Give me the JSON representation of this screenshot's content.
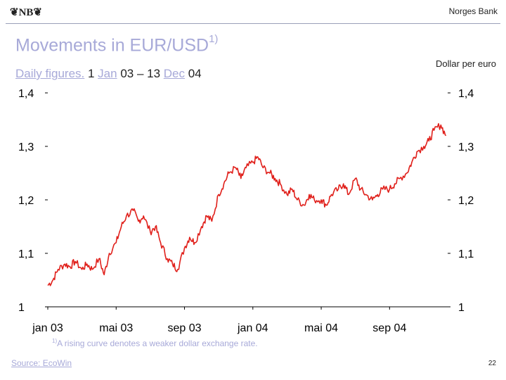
{
  "header": {
    "logo_text": "❦NB❦",
    "bank_name": "Norges Bank"
  },
  "title": {
    "main": "Movements in EUR/USD",
    "sup": "1)"
  },
  "subtitle": {
    "part1": "Daily figures.",
    "part2": " 1 ",
    "part3": "Jan",
    "part4": " 03 – 13 ",
    "part5": "Dec",
    "part6": " 04"
  },
  "units_label": "Dollar per euro",
  "footnote": {
    "sup": "1)",
    "text": "A rising curve denotes a weaker dollar exchange rate."
  },
  "source": "Source: EcoWin",
  "page_number": "22",
  "chart_data": {
    "type": "line",
    "title": "Movements in EUR/USD",
    "ylabel_right": "Dollar per euro",
    "ylim": [
      1.0,
      1.4
    ],
    "yticks": [
      1.4,
      1.3,
      1.2,
      1.1,
      1.0
    ],
    "ytick_labels": [
      "1,4",
      "1,3",
      "1,2",
      "1,1",
      "1"
    ],
    "xlim": [
      0,
      23.4
    ],
    "xticks": [
      0,
      4,
      8,
      12,
      16,
      20
    ],
    "xtick_labels": [
      "jan 03",
      "mai 03",
      "sep 03",
      "jan 04",
      "mai 04",
      "sep 04"
    ],
    "grid": false,
    "line_color": "#e0201b",
    "series": [
      {
        "x": [
          0,
          0.3,
          0.6,
          1.0,
          1.3,
          1.6,
          2.0,
          2.3,
          2.6,
          3.0,
          3.3,
          3.6,
          4.0,
          4.3,
          4.6,
          5.0,
          5.3,
          5.6,
          6.0,
          6.3,
          6.6,
          7.0,
          7.3,
          7.6,
          8.0,
          8.3,
          8.6,
          9.0,
          9.3,
          9.6,
          10.0,
          10.3,
          10.6,
          11.0,
          11.3,
          11.6,
          12.0,
          12.3,
          12.6,
          13.0,
          13.3,
          13.6,
          14.0,
          14.3,
          14.6,
          15.0,
          15.3,
          15.6,
          16.0,
          16.3,
          16.6,
          17.0,
          17.3,
          17.6,
          18.0,
          18.3,
          18.6,
          19.0,
          19.3,
          19.6,
          20.0,
          20.3,
          20.6,
          21.0,
          21.3,
          21.6,
          22.0,
          22.3,
          22.6,
          23.0,
          23.3
        ],
        "y": [
          1.04,
          1.05,
          1.07,
          1.08,
          1.075,
          1.085,
          1.07,
          1.08,
          1.07,
          1.09,
          1.06,
          1.1,
          1.12,
          1.15,
          1.17,
          1.18,
          1.16,
          1.17,
          1.14,
          1.15,
          1.12,
          1.09,
          1.08,
          1.07,
          1.11,
          1.13,
          1.12,
          1.15,
          1.17,
          1.16,
          1.21,
          1.23,
          1.25,
          1.26,
          1.24,
          1.26,
          1.27,
          1.28,
          1.26,
          1.25,
          1.24,
          1.23,
          1.21,
          1.22,
          1.2,
          1.19,
          1.21,
          1.2,
          1.2,
          1.19,
          1.21,
          1.22,
          1.23,
          1.21,
          1.24,
          1.22,
          1.21,
          1.2,
          1.21,
          1.22,
          1.22,
          1.23,
          1.24,
          1.25,
          1.27,
          1.29,
          1.3,
          1.31,
          1.33,
          1.34,
          1.32
        ]
      }
    ]
  }
}
